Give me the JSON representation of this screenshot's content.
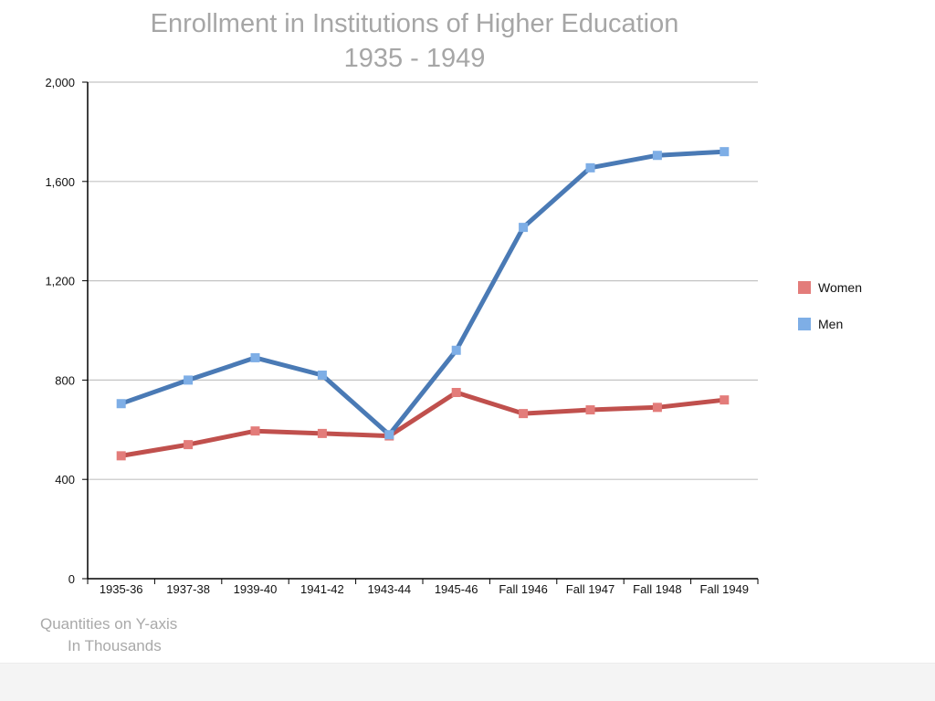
{
  "chart_data": {
    "type": "line",
    "title": "Enrollment in Institutions of Higher Education",
    "subtitle": "1935 - 1949",
    "note_line1": "Quantities on Y-axis",
    "note_line2": "In Thousands",
    "categories": [
      "1935-36",
      "1937-38",
      "1939-40",
      "1941-42",
      "1943-44",
      "1945-46",
      "Fall 1946",
      "Fall 1947",
      "Fall 1948",
      "Fall 1949"
    ],
    "ylim": [
      0,
      2000
    ],
    "yticks": [
      0,
      400,
      800,
      1200,
      1600,
      2000
    ],
    "ytick_labels": [
      "0",
      "400",
      "800",
      "1,200",
      "1,600",
      "2,000"
    ],
    "grid": true,
    "legend_position": "right",
    "series": [
      {
        "name": "Women",
        "line_color": "#c0504d",
        "marker_color": "#e37c7a",
        "values": [
          495,
          540,
          595,
          585,
          575,
          750,
          665,
          680,
          690,
          720
        ]
      },
      {
        "name": "Men",
        "line_color": "#4a7ab5",
        "marker_color": "#7eaee6",
        "values": [
          705,
          800,
          890,
          820,
          580,
          920,
          1415,
          1655,
          1705,
          1720
        ]
      }
    ]
  }
}
